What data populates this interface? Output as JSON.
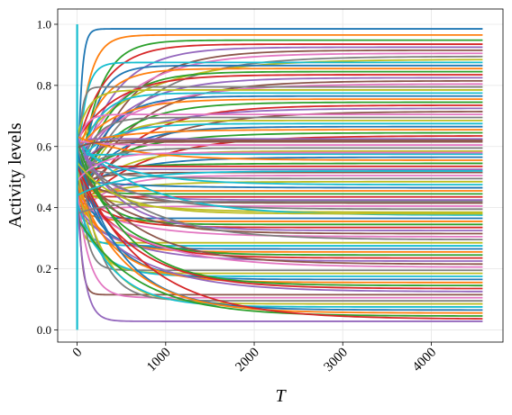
{
  "chart_data": {
    "type": "line",
    "xlabel": "T",
    "ylabel": "Activity levels",
    "xlim": [
      -220,
      4810
    ],
    "ylim": [
      -0.04,
      1.05
    ],
    "xticks": [
      0,
      1000,
      2000,
      3000,
      4000
    ],
    "xtick_labels": [
      "0",
      "1000",
      "2000",
      "3000",
      "4000"
    ],
    "yticks": [
      0.0,
      0.2,
      0.4,
      0.6,
      0.8,
      1.0
    ],
    "ytick_labels": [
      "0.0",
      "0.2",
      "0.4",
      "0.6",
      "0.8",
      "1.0"
    ],
    "grid": true,
    "legend": "none",
    "x_end": 4580,
    "series_count": 100,
    "description_of_dynamics": "",
    "palette": [
      "#1f77b4",
      "#ff7f0e",
      "#2ca02c",
      "#d62728",
      "#9467bd",
      "#8c564b",
      "#e377c2",
      "#7f7f7f",
      "#bcbd22",
      "#17becf"
    ],
    "series": [
      {
        "final": 0.985
      },
      {
        "final": 0.965
      },
      {
        "final": 0.948
      },
      {
        "final": 0.935
      },
      {
        "final": 0.925
      },
      {
        "final": 0.915
      },
      {
        "final": 0.905
      },
      {
        "final": 0.895
      },
      {
        "final": 0.885
      },
      {
        "final": 0.875
      },
      {
        "final": 0.865
      },
      {
        "final": 0.855
      },
      {
        "final": 0.845
      },
      {
        "final": 0.835
      },
      {
        "final": 0.825
      },
      {
        "final": 0.815
      },
      {
        "final": 0.805
      },
      {
        "final": 0.795
      },
      {
        "final": 0.785
      },
      {
        "final": 0.775
      },
      {
        "final": 0.765
      },
      {
        "final": 0.755
      },
      {
        "final": 0.745
      },
      {
        "final": 0.735
      },
      {
        "final": 0.725
      },
      {
        "final": 0.715
      },
      {
        "final": 0.705
      },
      {
        "final": 0.695
      },
      {
        "final": 0.685
      },
      {
        "final": 0.675
      },
      {
        "final": 0.665
      },
      {
        "final": 0.655
      },
      {
        "final": 0.645
      },
      {
        "final": 0.635
      },
      {
        "final": 0.625
      },
      {
        "final": 0.615
      },
      {
        "final": 0.605
      },
      {
        "final": 0.595
      },
      {
        "final": 0.585
      },
      {
        "final": 0.575
      },
      {
        "final": 0.565
      },
      {
        "final": 0.555
      },
      {
        "final": 0.545
      },
      {
        "final": 0.535
      },
      {
        "final": 0.525
      },
      {
        "final": 0.515
      },
      {
        "final": 0.505
      },
      {
        "final": 0.495
      },
      {
        "final": 0.485
      },
      {
        "final": 0.475
      },
      {
        "final": 0.465
      },
      {
        "final": 0.455
      },
      {
        "final": 0.445
      },
      {
        "final": 0.435
      },
      {
        "final": 0.425
      },
      {
        "final": 0.415
      },
      {
        "final": 0.405
      },
      {
        "final": 0.395
      },
      {
        "final": 0.385
      },
      {
        "final": 0.375
      },
      {
        "final": 0.365
      },
      {
        "final": 0.355
      },
      {
        "final": 0.345
      },
      {
        "final": 0.335
      },
      {
        "final": 0.325
      },
      {
        "final": 0.315
      },
      {
        "final": 0.305
      },
      {
        "final": 0.295
      },
      {
        "final": 0.285
      },
      {
        "final": 0.275
      },
      {
        "final": 0.265
      },
      {
        "final": 0.255
      },
      {
        "final": 0.245
      },
      {
        "final": 0.235
      },
      {
        "final": 0.225
      },
      {
        "final": 0.215
      },
      {
        "final": 0.205
      },
      {
        "final": 0.195
      },
      {
        "final": 0.185
      },
      {
        "final": 0.175
      },
      {
        "final": 0.165
      },
      {
        "final": 0.155
      },
      {
        "final": 0.145
      },
      {
        "final": 0.135
      },
      {
        "final": 0.125
      },
      {
        "final": 0.115
      },
      {
        "final": 0.105
      },
      {
        "final": 0.095
      },
      {
        "final": 0.085
      },
      {
        "final": 0.075
      },
      {
        "final": 0.065
      },
      {
        "final": 0.055
      },
      {
        "final": 0.045
      },
      {
        "final": 0.035
      },
      {
        "final": 0.028
      },
      {
        "final": 0.62
      },
      {
        "final": 0.58
      },
      {
        "final": 0.42
      },
      {
        "final": 0.38
      },
      {
        "final": 0.52
      }
    ]
  }
}
